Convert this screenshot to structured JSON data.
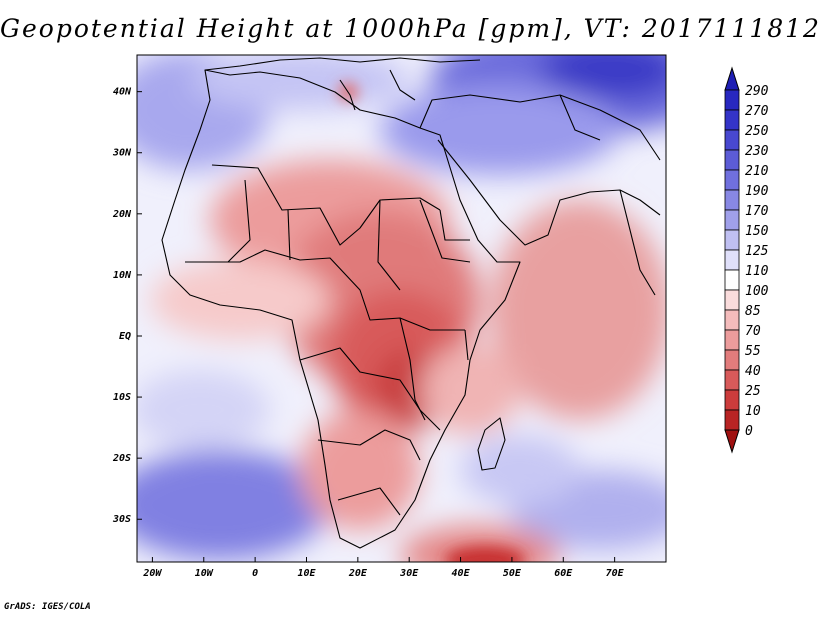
{
  "title": "Geopotential Height at 1000hPa [gpm], VT: 2017111812",
  "credit": "GrADS: IGES/COLA",
  "map": {
    "lon_range": [
      -23,
      80
    ],
    "lat_range": [
      -37,
      46
    ],
    "lon_ticks": [
      {
        "value": -20,
        "label": "20W"
      },
      {
        "value": -10,
        "label": "10W"
      },
      {
        "value": 0,
        "label": "0"
      },
      {
        "value": 10,
        "label": "10E"
      },
      {
        "value": 20,
        "label": "20E"
      },
      {
        "value": 30,
        "label": "30E"
      },
      {
        "value": 40,
        "label": "40E"
      },
      {
        "value": 50,
        "label": "50E"
      },
      {
        "value": 60,
        "label": "60E"
      },
      {
        "value": 70,
        "label": "70E"
      }
    ],
    "lat_ticks": [
      {
        "value": 40,
        "label": "40N"
      },
      {
        "value": 30,
        "label": "30N"
      },
      {
        "value": 20,
        "label": "20N"
      },
      {
        "value": 10,
        "label": "10N"
      },
      {
        "value": 0,
        "label": "EQ"
      },
      {
        "value": -10,
        "label": "10S"
      },
      {
        "value": -20,
        "label": "20S"
      },
      {
        "value": -30,
        "label": "30S"
      }
    ]
  },
  "colorbar": {
    "levels": [
      "290",
      "270",
      "250",
      "230",
      "210",
      "190",
      "170",
      "150",
      "125",
      "110",
      "100",
      "85",
      "70",
      "55",
      "40",
      "25",
      "10",
      "0"
    ],
    "colors": [
      "#1e1eb4",
      "#2828c0",
      "#3434c8",
      "#4848d0",
      "#5c5cd6",
      "#7070de",
      "#8888e4",
      "#a0a0ea",
      "#c0c0f2",
      "#e0e0fa",
      "#ffffff",
      "#fadcdc",
      "#f4bcbc",
      "#ec9c9c",
      "#e27c7c",
      "#d85a5a",
      "#cc3c3c",
      "#b82424",
      "#a01010"
    ]
  },
  "colors": {
    "land_outline": "#000000",
    "ocean_high": "#9090e8",
    "neutral": "#f2f2ff",
    "low": "#e06666"
  }
}
